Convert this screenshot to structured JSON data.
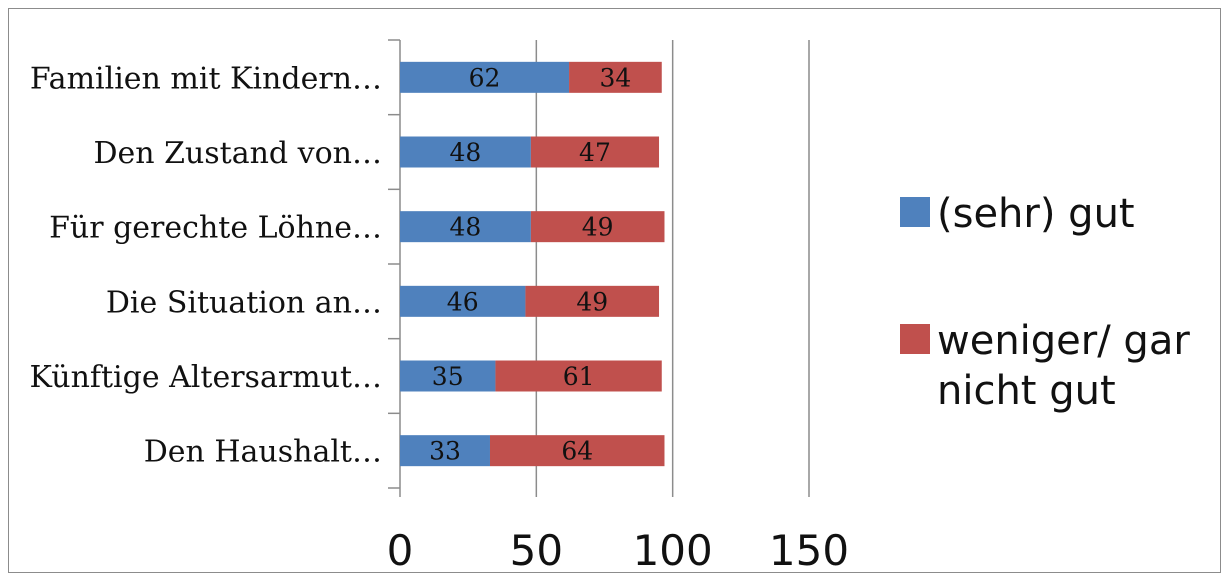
{
  "chart_data": {
    "type": "bar",
    "orientation": "horizontal",
    "stacked": true,
    "categories": [
      "Familien mit Kindern…",
      "Den Zustand von…",
      "Für gerechte Löhne…",
      "Die Situation an…",
      "Künftige Altersarmut…",
      "Den Haushalt…"
    ],
    "series": [
      {
        "name": "(sehr) gut",
        "color": "#4f81bd",
        "values": [
          62,
          48,
          48,
          46,
          35,
          33
        ]
      },
      {
        "name": "weniger/ gar nicht gut",
        "color": "#c0504d",
        "values": [
          34,
          47,
          49,
          49,
          61,
          64
        ]
      }
    ],
    "xlim": [
      0,
      150
    ],
    "x_ticks": [
      "0",
      "50",
      "100",
      "150"
    ],
    "grid": "vertical",
    "data_labels": true,
    "legend_position": "right",
    "legend_lines": [
      [
        "(sehr) gut"
      ],
      [
        "weniger/ gar",
        "nicht gut"
      ]
    ]
  }
}
